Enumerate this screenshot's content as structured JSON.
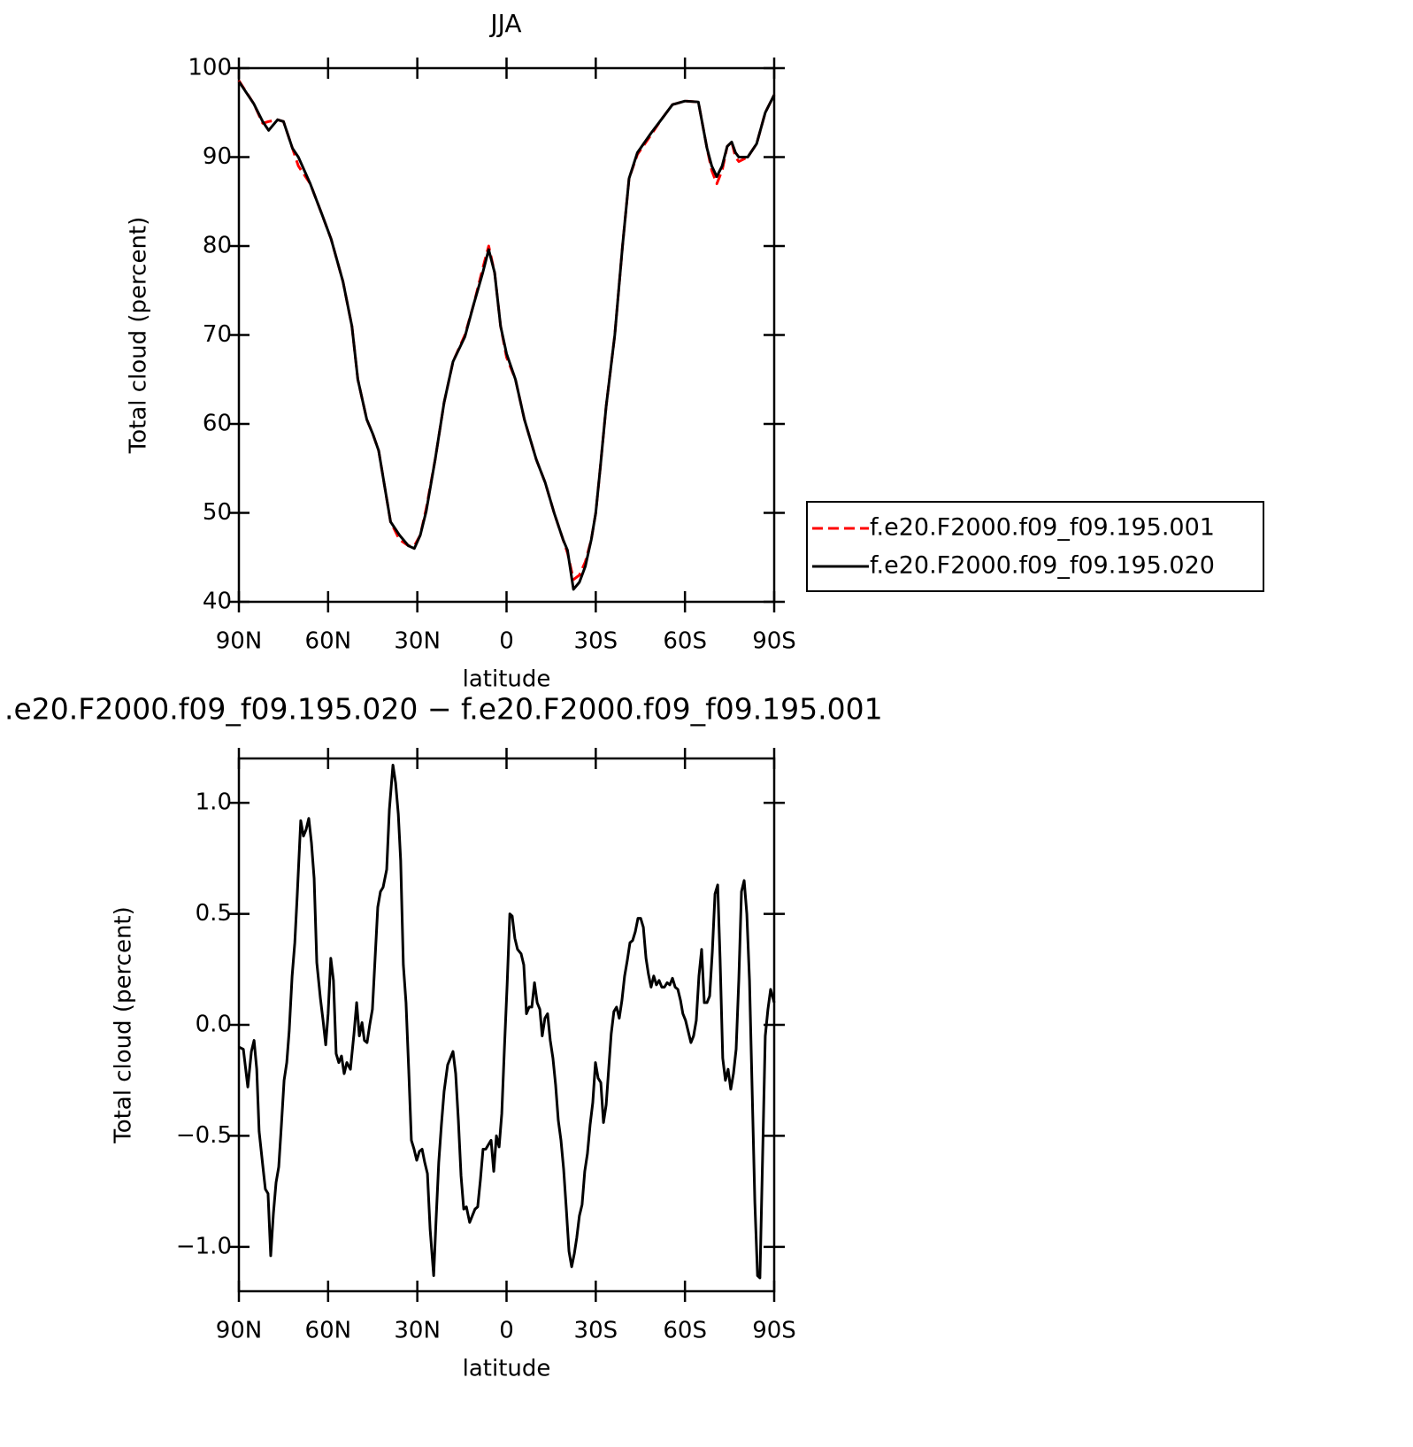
{
  "chart_data": [
    {
      "type": "line",
      "title": "JJA",
      "xlabel": "latitude",
      "ylabel": "Total cloud (percent)",
      "x": [
        90,
        85,
        82,
        80,
        77,
        75,
        72,
        70,
        66,
        62,
        59,
        55,
        52,
        50,
        47,
        45,
        43,
        41,
        39,
        36,
        33,
        31,
        29,
        27,
        24,
        21,
        18,
        14,
        11,
        8,
        6,
        4,
        2,
        0,
        -3,
        -6,
        -10,
        -13,
        -16,
        -19,
        -20.5,
        -22.5,
        -24.5,
        -26.5,
        -28.5,
        -30,
        -31.5,
        -33.5,
        -36.4,
        -39,
        -41.2,
        -44,
        -48.6,
        -52,
        -55.8,
        -60,
        -64.5,
        -67.4,
        -69,
        -70.7,
        -72.5,
        -74.2,
        -75.7,
        -77,
        -78.1,
        -81.1,
        -84.1,
        -87,
        -90
      ],
      "series": [
        {
          "name": "f.e20.F2000.f09_f09.195.001",
          "color": "#ff0000",
          "linestyle": "dashed",
          "values": [
            98.6,
            96,
            93.8,
            94,
            94.2,
            94,
            91,
            89,
            87,
            83.5,
            80.8,
            76,
            71,
            65,
            60.5,
            58.9,
            57,
            53,
            49,
            47,
            46.3,
            46.3,
            47.5,
            50.5,
            56,
            62.4,
            67,
            70,
            73.5,
            77.5,
            80,
            77,
            71,
            67.5,
            65,
            60.5,
            56,
            53.4,
            50,
            47,
            45.5,
            42.5,
            43,
            44.5,
            47,
            50,
            55,
            62,
            70,
            80,
            87.6,
            90.3,
            92.5,
            94.2,
            95.9,
            96.3,
            96.2,
            91,
            88.5,
            87,
            88.5,
            91.2,
            91.7,
            90,
            89.5,
            90,
            91.5,
            95,
            97
          ]
        },
        {
          "name": "f.e20.F2000.f09_f09.195.020",
          "color": "#000000",
          "linestyle": "solid",
          "values": [
            98.5,
            96,
            94,
            93,
            94.2,
            94,
            91,
            90,
            87,
            83.5,
            80.8,
            76,
            71,
            65,
            60.5,
            58.9,
            57,
            53,
            49,
            47.5,
            46.3,
            46,
            47.5,
            50.2,
            56,
            62.4,
            67,
            69.8,
            73.5,
            77,
            79.6,
            77,
            71,
            67.9,
            65,
            60.5,
            56,
            53.4,
            50,
            47,
            45.8,
            41.4,
            42.2,
            44,
            47,
            50,
            55,
            62,
            70,
            80,
            87.6,
            90.5,
            92.7,
            94.2,
            95.9,
            96.3,
            96.2,
            91,
            89,
            87.8,
            89,
            91.2,
            91.7,
            90.5,
            90,
            90,
            91.5,
            95,
            97
          ]
        }
      ],
      "xlim": [
        90,
        -90
      ],
      "xticks": [
        {
          "value": 90,
          "label": "90N"
        },
        {
          "value": 60,
          "label": "60N"
        },
        {
          "value": 30,
          "label": "30N"
        },
        0,
        {
          "value": -30,
          "label": "30S"
        },
        {
          "value": -60,
          "label": "60S"
        },
        {
          "value": -90,
          "label": "90S"
        }
      ],
      "ylim": [
        40,
        100
      ],
      "yticks": [
        40,
        50,
        60,
        70,
        80,
        90,
        100
      ],
      "legend": "right"
    },
    {
      "type": "line",
      "title": ".e20.F2000.f09_f09.195.020 − f.e20.F2000.f09_f09.195.001",
      "xlabel": "latitude",
      "ylabel": "Total cloud (percent)",
      "x": [
        90,
        88.5,
        87.0,
        85.8,
        84.9,
        84.0,
        83.2,
        82.0,
        81.1,
        80.2,
        79.3,
        78.4,
        77.5,
        76.6,
        75.7,
        74.8,
        73.9,
        73.1,
        72.1,
        71.2,
        70.4,
        69.2,
        68.3,
        67.4,
        66.5,
        65.6,
        64.7,
        63.8,
        62.6,
        61.7,
        60.8,
        60.0,
        59.1,
        58.2,
        57.3,
        56.4,
        55.5,
        54.6,
        53.7,
        52.5,
        51.3,
        50.4,
        49.5,
        48.6,
        47.8,
        46.9,
        46.0,
        45.1,
        44.2,
        43.3,
        42.4,
        41.5,
        40.3,
        39.4,
        38.2,
        37.3,
        36.4,
        35.6,
        34.7,
        33.8,
        32.9,
        32.0,
        31.1,
        30.2,
        29.3,
        28.4,
        27.5,
        26.6,
        25.7,
        24.5,
        23.7,
        22.8,
        21.9,
        21.0,
        19.8,
        18.9,
        18.0,
        17.1,
        16.2,
        15.3,
        14.4,
        13.5,
        12.4,
        11.5,
        10.6,
        9.7,
        8.8,
        7.9,
        7.0,
        6.1,
        5.2,
        4.3,
        3.4,
        2.5,
        1.6,
        0.7,
        -0.2,
        -1.1,
        -1.9,
        -2.8,
        -3.7,
        -4.9,
        -5.8,
        -6.7,
        -7.6,
        -8.5,
        -9.4,
        -10.3,
        -11.2,
        -12.0,
        -12.9,
        -13.8,
        -14.7,
        -15.6,
        -16.5,
        -17.4,
        -18.3,
        -19.2,
        -20.1,
        -21.0,
        -21.9,
        -22.8,
        -23.6,
        -24.5,
        -25.4,
        -26.3,
        -27.2,
        -28.1,
        -29.0,
        -29.9,
        -30.8,
        -31.7,
        -32.6,
        -33.5,
        -34.4,
        -35.2,
        -36.1,
        -37.0,
        -37.9,
        -38.8,
        -39.7,
        -40.6,
        -41.5,
        -42.4,
        -43.3,
        -44.2,
        -45.1,
        -46.0,
        -46.9,
        -47.7,
        -48.6,
        -49.5,
        -50.4,
        -51.3,
        -52.2,
        -53.1,
        -54.0,
        -54.9,
        -55.8,
        -56.7,
        -57.6,
        -58.5,
        -59.3,
        -60.2,
        -61.1,
        -62.0,
        -62.9,
        -63.8,
        -64.7,
        -65.6,
        -66.5,
        -67.4,
        -68.3,
        -69.2,
        -70.1,
        -71.0,
        -71.8,
        -72.7,
        -73.6,
        -74.5,
        -75.4,
        -76.3,
        -77.2,
        -78.1,
        -79.0,
        -79.9,
        -80.8,
        -81.7,
        -82.6,
        -83.5,
        -84.4,
        -85.2,
        -86.1,
        -87.0,
        -87.9,
        -88.8,
        -90
      ],
      "series": [
        {
          "color": "#000000",
          "linestyle": "solid",
          "values": [
            -0.1,
            -0.11,
            -0.28,
            -0.12,
            -0.07,
            -0.2,
            -0.48,
            -0.63,
            -0.74,
            -0.76,
            -1.04,
            -0.85,
            -0.71,
            -0.64,
            -0.45,
            -0.25,
            -0.17,
            -0.03,
            0.22,
            0.37,
            0.58,
            0.92,
            0.85,
            0.88,
            0.93,
            0.82,
            0.66,
            0.28,
            0.12,
            0.02,
            -0.09,
            0.05,
            0.3,
            0.2,
            -0.13,
            -0.17,
            -0.14,
            -0.22,
            -0.17,
            -0.2,
            -0.04,
            0.1,
            -0.05,
            0.01,
            -0.07,
            -0.08,
            0.0,
            0.07,
            0.3,
            0.53,
            0.6,
            0.62,
            0.7,
            0.97,
            1.17,
            1.09,
            0.95,
            0.74,
            0.27,
            0.1,
            -0.2,
            -0.52,
            -0.56,
            -0.61,
            -0.57,
            -0.56,
            -0.62,
            -0.67,
            -0.92,
            -1.13,
            -0.88,
            -0.62,
            -0.45,
            -0.3,
            -0.18,
            -0.15,
            -0.12,
            -0.22,
            -0.43,
            -0.68,
            -0.83,
            -0.82,
            -0.89,
            -0.86,
            -0.83,
            -0.82,
            -0.7,
            -0.56,
            -0.56,
            -0.54,
            -0.52,
            -0.66,
            -0.5,
            -0.55,
            -0.4,
            -0.1,
            0.18,
            0.5,
            0.49,
            0.39,
            0.34,
            0.32,
            0.27,
            0.05,
            0.08,
            0.08,
            0.19,
            0.1,
            0.07,
            -0.05,
            0.03,
            0.05,
            -0.07,
            -0.15,
            -0.27,
            -0.43,
            -0.52,
            -0.65,
            -0.83,
            -1.02,
            -1.09,
            -1.03,
            -0.96,
            -0.86,
            -0.81,
            -0.66,
            -0.58,
            -0.45,
            -0.35,
            -0.17,
            -0.24,
            -0.26,
            -0.44,
            -0.36,
            -0.19,
            -0.04,
            0.06,
            0.08,
            0.03,
            0.11,
            0.22,
            0.29,
            0.37,
            0.38,
            0.42,
            0.48,
            0.48,
            0.44,
            0.3,
            0.23,
            0.17,
            0.22,
            0.18,
            0.2,
            0.17,
            0.17,
            0.19,
            0.18,
            0.21,
            0.17,
            0.16,
            0.11,
            0.05,
            0.02,
            -0.03,
            -0.08,
            -0.05,
            0.02,
            0.22,
            0.34,
            0.1,
            0.1,
            0.13,
            0.33,
            0.59,
            0.63,
            0.3,
            -0.15,
            -0.25,
            -0.2,
            -0.29,
            -0.22,
            -0.11,
            0.2,
            0.6,
            0.65,
            0.5,
            0.2,
            -0.3,
            -0.8,
            -1.13,
            -1.14,
            -0.6,
            -0.05,
            0.07,
            0.16,
            0.1
          ]
        }
      ],
      "xlim": [
        90,
        -90
      ],
      "xticks": [
        {
          "value": 90,
          "label": "90N"
        },
        {
          "value": 60,
          "label": "60N"
        },
        {
          "value": 30,
          "label": "30N"
        },
        0,
        {
          "value": -30,
          "label": "30S"
        },
        {
          "value": -60,
          "label": "60S"
        },
        {
          "value": -90,
          "label": "90S"
        }
      ],
      "ylim": [
        -1.2,
        1.2
      ],
      "yticks": [
        {
          "value": -1.0,
          "label": "−1.0"
        },
        {
          "value": -0.5,
          "label": "−0.5"
        },
        {
          "value": 0.0,
          "label": "0.0"
        },
        {
          "value": 0.5,
          "label": "0.5"
        },
        {
          "value": 1.0,
          "label": "1.0"
        }
      ]
    }
  ]
}
